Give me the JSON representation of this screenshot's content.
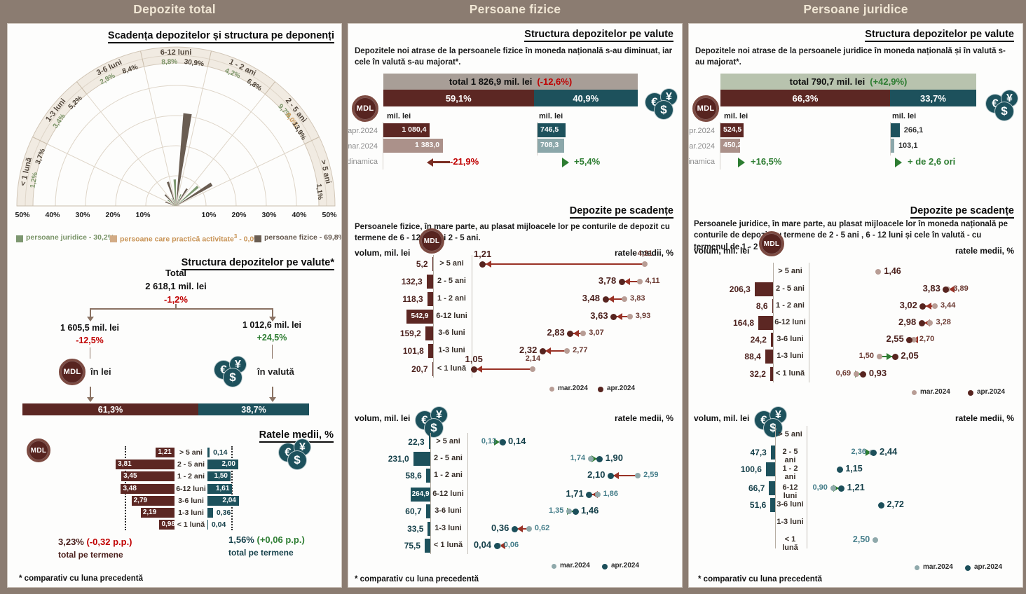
{
  "headers": [
    "Depozite total",
    "Persoane fizice",
    "Persoane juridice"
  ],
  "footnote": "* comparativ cu luna precedentă",
  "labels": {
    "mdl": "MDL",
    "fx": [
      "€",
      "¥",
      "$"
    ],
    "vol": "volum, mil. lei",
    "rate": "ratele medii, %",
    "unit": "mil. lei",
    "mar": "mar.2024",
    "apr": "apr.2024"
  },
  "colors": {
    "maroon": "#5c2723",
    "maroon_light": "#ab918a",
    "teal": "#1d515c",
    "teal_light": "#8ba7aa",
    "red": "#c00000",
    "green": "#2e7d32",
    "page_bg": "#8b7c71",
    "polar_fizice": "#6a5d52",
    "polar_juridice": "#7d9770",
    "polar_activitate": "#d2ab85"
  },
  "chart_data": [
    {
      "type": "polar-bar",
      "title": "Scadența depozitelor și structura pe deponenți",
      "r_max_pct": 50,
      "axis_ticks_left": [
        "50%",
        "40%",
        "30%",
        "20%",
        "10%"
      ],
      "axis_ticks_right": [
        "10%",
        "20%",
        "30%",
        "40%",
        "50%"
      ],
      "sectors": [
        {
          "label": "< 1 lună",
          "juridice": 1.2,
          "juridice_l": "1,2%",
          "fizice": 3.7,
          "fizice_l": "3,7%"
        },
        {
          "label": "1-3 luni",
          "juridice": 3.4,
          "juridice_l": "3,4%",
          "fizice": 5.2,
          "fizice_l": "5,2%"
        },
        {
          "label": "3-6 luni",
          "juridice": 2.9,
          "juridice_l": "2,9%",
          "fizice": 8.4,
          "fizice_l": "8,4%"
        },
        {
          "label": "6-12 luni",
          "juridice": 8.8,
          "juridice_l": "8,8%",
          "fizice": 30.9,
          "fizice_l": "30,9%"
        },
        {
          "label": "1 - 2 ani",
          "juridice": 4.2,
          "juridice_l": "4,2%",
          "fizice": 6.8,
          "fizice_l": "6,8%"
        },
        {
          "label": "2 - 5 ani",
          "juridice": 9.7,
          "juridice_l": "9,7%",
          "activitate": 0.0,
          "activitate_l": "0,0%",
          "fizice": 13.9,
          "fizice_l": "13,9%"
        },
        {
          "label": "> 5 ani",
          "fizice": 1.1,
          "fizice_l": "1,1%"
        }
      ],
      "legend": [
        {
          "label": "persoane juridice - 30,2%",
          "color": "#7d9770",
          "text_color": "#7a9468"
        },
        {
          "label": "persoane care practică activitate",
          "sup": "3",
          "rest": " - 0,0%",
          "color": "#d2ab85",
          "text_color": "#c89355"
        },
        {
          "label": "persoane fizice - 69,8%",
          "color": "#6a5d52",
          "text_color": "#63564c"
        }
      ]
    },
    {
      "type": "tree-split",
      "title": "Structura depozitelor pe valute*",
      "total_label": "Total",
      "total_value": "2 618,1 mil. lei",
      "total_change": "-1,2%",
      "left": {
        "value": "1 605,5 mil. lei",
        "change": "-12,5%",
        "label": "în lei",
        "share_label": "61,3%",
        "share_pct": 61.3
      },
      "right": {
        "value": "1 012,6 mil. lei",
        "change": "+24,5%",
        "label": "în valută",
        "share_label": "38,7%",
        "share_pct": 38.7
      }
    },
    {
      "type": "tornado",
      "title": "Ratele medii, %",
      "categories": [
        "> 5 ani",
        "2 - 5 ani",
        "1 - 2 ani",
        "6-12 luni",
        "3-6 luni",
        "1-3 luni",
        "< 1 lună"
      ],
      "mdl": {
        "values": [
          1.21,
          3.81,
          3.45,
          3.48,
          2.79,
          2.19,
          0.98
        ],
        "labels": [
          "1,21",
          "3,81",
          "3,45",
          "3,48",
          "2,79",
          "2,19",
          "0,98"
        ],
        "total_ref": 3.23
      },
      "valuta": {
        "values": [
          0.14,
          2.0,
          1.5,
          1.61,
          2.04,
          0.36,
          0.04
        ],
        "labels": [
          "0,14",
          "2,00",
          "1,50",
          "1,61",
          "2,04",
          "0,36",
          "0,04"
        ],
        "total_ref": 1.56
      },
      "mdl_total": "3,23%",
      "mdl_total_change": "(-0,32 p.p.)",
      "valuta_total": "1,56%",
      "valuta_total_change": "(+0,06 p.p.)",
      "total_caption": "total pe termene"
    },
    {
      "type": "stacked-bar",
      "title": "Structura depozitelor pe valute",
      "intro": "Depozitele noi atrase de la persoanele fizice în moneda națională s-au diminuat, iar cele în valută s-au majorat*.",
      "total_text": "total 1 826,9 mil. lei",
      "total_change": "(-12,6%)",
      "total_change_color": "#c00000",
      "total_bg": "#a89e97",
      "row_labels": [
        "apr.2024",
        "mar.2024",
        "dinamica"
      ],
      "mdl": {
        "share_label": "59,1%",
        "share_pct": 59.1,
        "apr": 1080.4,
        "apr_l": "1 080,4",
        "mar": 1383.0,
        "mar_l": "1 383,0",
        "dyn": "-21,9%",
        "dir": "down"
      },
      "valuta": {
        "share_label": "40,9%",
        "share_pct": 40.9,
        "apr": 746.5,
        "apr_l": "746,5",
        "mar": 708.3,
        "mar_l": "708,3",
        "dyn": "+5,4%",
        "dir": "up"
      }
    },
    {
      "type": "bar-dot",
      "currency": "MDL",
      "title": "Depozite pe scadențe",
      "intro": "Persoanele fizice, în mare parte, au plasat mijloacele lor pe conturile de depozit cu termene de 6 - 12 luni și 2 - 5 ani.",
      "categories": [
        "> 5 ani",
        "2 - 5 ani",
        "1 - 2 ani",
        "6-12 luni",
        "3-6 luni",
        "1-3 luni",
        "< 1 lună"
      ],
      "volumes": [
        {
          "v": 5.2,
          "l": "5,2"
        },
        {
          "v": 132.3,
          "l": "132,3"
        },
        {
          "v": 118.3,
          "l": "118,3"
        },
        {
          "v": 542.9,
          "l": "542,9"
        },
        {
          "v": 159.2,
          "l": "159,2"
        },
        {
          "v": 101.8,
          "l": "101,8"
        },
        {
          "v": 20.7,
          "l": "20,7"
        }
      ],
      "rates": [
        {
          "mar": 4.21,
          "mar_l": "4,21",
          "apr": 1.21,
          "apr_l": "1,21",
          "above": true
        },
        {
          "mar": 4.11,
          "mar_l": "4,11",
          "apr": 3.78,
          "apr_l": "3,78"
        },
        {
          "mar": 3.83,
          "mar_l": "3,83",
          "apr": 3.48,
          "apr_l": "3,48"
        },
        {
          "mar": 3.93,
          "mar_l": "3,93",
          "apr": 3.63,
          "apr_l": "3,63"
        },
        {
          "mar": 3.07,
          "mar_l": "3,07",
          "apr": 2.83,
          "apr_l": "2,83"
        },
        {
          "mar": 2.77,
          "mar_l": "2,77",
          "apr": 2.32,
          "apr_l": "2,32"
        },
        {
          "mar": 2.14,
          "mar_l": "2,14",
          "apr": 1.05,
          "apr_l": "1,05",
          "above": true
        }
      ]
    },
    {
      "type": "bar-dot",
      "currency": "valută",
      "categories": [
        "> 5 ani",
        "2 - 5 ani",
        "1 - 2 ani",
        "6-12 luni",
        "3-6 luni",
        "1-3 luni",
        "< 1 lună"
      ],
      "volumes": [
        {
          "v": 22.3,
          "l": "22,3"
        },
        {
          "v": 231.0,
          "l": "231,0"
        },
        {
          "v": 58.6,
          "l": "58,6"
        },
        {
          "v": 264.9,
          "l": "264,9"
        },
        {
          "v": 60.7,
          "l": "60,7"
        },
        {
          "v": 33.5,
          "l": "33,5"
        },
        {
          "v": 75.5,
          "l": "75,5"
        }
      ],
      "rates": [
        {
          "mar": 0.13,
          "mar_l": "0,13",
          "apr": 0.14,
          "apr_l": "0,14"
        },
        {
          "mar": 1.74,
          "mar_l": "1,74",
          "apr": 1.9,
          "apr_l": "1,90"
        },
        {
          "mar": 2.59,
          "mar_l": "2,59",
          "apr": 2.1,
          "apr_l": "2,10"
        },
        {
          "mar": 1.86,
          "mar_l": "1,86",
          "apr": 1.71,
          "apr_l": "1,71"
        },
        {
          "mar": 1.35,
          "mar_l": "1,35",
          "apr": 1.46,
          "apr_l": "1,46"
        },
        {
          "mar": 0.62,
          "mar_l": "0,62",
          "apr": 0.36,
          "apr_l": "0,36"
        },
        {
          "mar": 0.06,
          "mar_l": "0,06",
          "apr": 0.04,
          "apr_l": "0,04"
        }
      ]
    },
    {
      "type": "stacked-bar",
      "title": "Structura depozitelor pe valute",
      "intro": "Depozitele noi atrase de la persoanele juridice în moneda națională și în valută s-au majorat*.",
      "total_text": "total 790,7 mil. lei",
      "total_change": "(+42,9%)",
      "total_change_color": "#2e7d32",
      "total_bg": "#b8c3ae",
      "row_labels": [
        "apr.2024",
        "mar.2024",
        "dinamica"
      ],
      "mdl": {
        "share_label": "66,3%",
        "share_pct": 66.3,
        "apr": 524.5,
        "apr_l": "524,5",
        "mar": 450.2,
        "mar_l": "450,2",
        "dyn": "+16,5%",
        "dir": "up"
      },
      "valuta": {
        "share_label": "33,7%",
        "share_pct": 33.7,
        "apr": 266.1,
        "apr_l": "266,1",
        "mar": 103.1,
        "mar_l": "103,1",
        "dyn": "+ de 2,6 ori",
        "dir": "up"
      }
    },
    {
      "type": "bar-dot",
      "currency": "MDL",
      "title": "Depozite pe scadențe",
      "intro": "Persoanele juridice, în mare parte, au plasat mijloacele lor în moneda națională pe conturile de depozit cu termene de 2 - 5 ani , 6 - 12 luni și cele în valută - cu termenul de 1 - 2 ani.",
      "categories": [
        "> 5 ani",
        "2 - 5 ani",
        "1 - 2 ani",
        "6-12 luni",
        "3-6 luni",
        "1-3 luni",
        "< 1 lună"
      ],
      "volumes": [
        null,
        {
          "v": 206.3,
          "l": "206,3"
        },
        {
          "v": 8.6,
          "l": "8,6"
        },
        {
          "v": 164.8,
          "l": "164,8"
        },
        {
          "v": 24.2,
          "l": "24,2"
        },
        {
          "v": 88.4,
          "l": "88,4"
        },
        {
          "v": 32.2,
          "l": "32,2"
        }
      ],
      "rates": [
        {
          "single": "mar",
          "v": 1.46,
          "l": "1,46",
          "side": "right",
          "style": "apr"
        },
        {
          "mar": 3.89,
          "mar_l": "3,89",
          "apr": 3.83,
          "apr_l": "3,83"
        },
        {
          "mar": 3.44,
          "mar_l": "3,44",
          "apr": 3.02,
          "apr_l": "3,02"
        },
        {
          "mar": 3.28,
          "mar_l": "3,28",
          "apr": 2.98,
          "apr_l": "2,98"
        },
        {
          "mar": 2.7,
          "mar_l": "2,70",
          "apr": 2.55,
          "apr_l": "2,55"
        },
        {
          "mar": 1.5,
          "mar_l": "1,50",
          "apr": 2.05,
          "apr_l": "2,05"
        },
        {
          "mar": 0.69,
          "mar_l": "0,69",
          "apr": 0.93,
          "apr_l": "0,93"
        }
      ]
    },
    {
      "type": "bar-dot",
      "currency": "valută",
      "categories": [
        "> 5 ani",
        "2 - 5 ani",
        "1 - 2 ani",
        "6-12 luni",
        "3-6 luni",
        "1-3 luni",
        "< 1 lună"
      ],
      "volumes": [
        null,
        {
          "v": 47.3,
          "l": "47,3"
        },
        {
          "v": 100.6,
          "l": "100,6"
        },
        {
          "v": 66.7,
          "l": "66,7"
        },
        {
          "v": 51.6,
          "l": "51,6"
        },
        null,
        null
      ],
      "rates": [
        null,
        {
          "mar": 2.36,
          "mar_l": "2,36",
          "apr": 2.44,
          "apr_l": "2,44"
        },
        {
          "single": "apr",
          "v": 1.15,
          "l": "1,15",
          "side": "right",
          "style": "apr"
        },
        {
          "mar": 0.9,
          "mar_l": "0,90",
          "apr": 1.21,
          "apr_l": "1,21"
        },
        {
          "single": "apr",
          "v": 2.72,
          "l": "2,72",
          "side": "right",
          "style": "apr"
        },
        null,
        {
          "single": "mar",
          "v": 2.5,
          "l": "2,50",
          "side": "left",
          "style": "mar"
        }
      ]
    }
  ]
}
